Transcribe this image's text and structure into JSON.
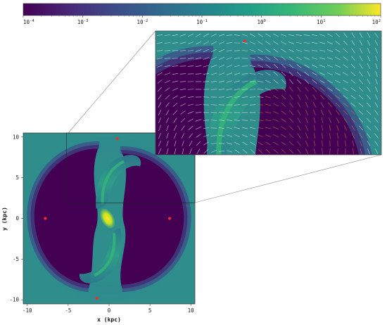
{
  "chart_data": {
    "type": "heatmap",
    "colormap": "viridis",
    "colorbar": {
      "scale": "log",
      "range": [
        0.0001,
        100
      ],
      "tick_labels": [
        "10",
        "10",
        "10",
        "10",
        "10",
        "10",
        "10"
      ],
      "tick_exponents": [
        "-4",
        "-3",
        "-2",
        "-1",
        "0",
        "1",
        "2"
      ]
    },
    "main_panel": {
      "xlabel": "x (kpc)",
      "ylabel": "y (kpc)",
      "xlim": [
        -10.5,
        10.5
      ],
      "ylim": [
        -10.5,
        10.5
      ],
      "xticks": [
        "-10",
        "-5",
        "0",
        "5",
        "10"
      ],
      "yticks": [
        "10",
        "5",
        "0",
        "-5",
        "-10"
      ],
      "markers": [
        {
          "x": 1.0,
          "y": 9.8
        },
        {
          "x": -7.8,
          "y": 0.0
        },
        {
          "x": 7.4,
          "y": 0.0
        },
        {
          "x": -1.5,
          "y": -9.8
        }
      ],
      "marker_color": "#ff2a2a"
    },
    "inset": {
      "source_region": {
        "xlim": [
          -5.2,
          10.5
        ],
        "ylim": [
          1.9,
          10.5
        ]
      },
      "vector_field": true,
      "marker": {
        "x": 1.0,
        "y": 9.8
      }
    }
  }
}
